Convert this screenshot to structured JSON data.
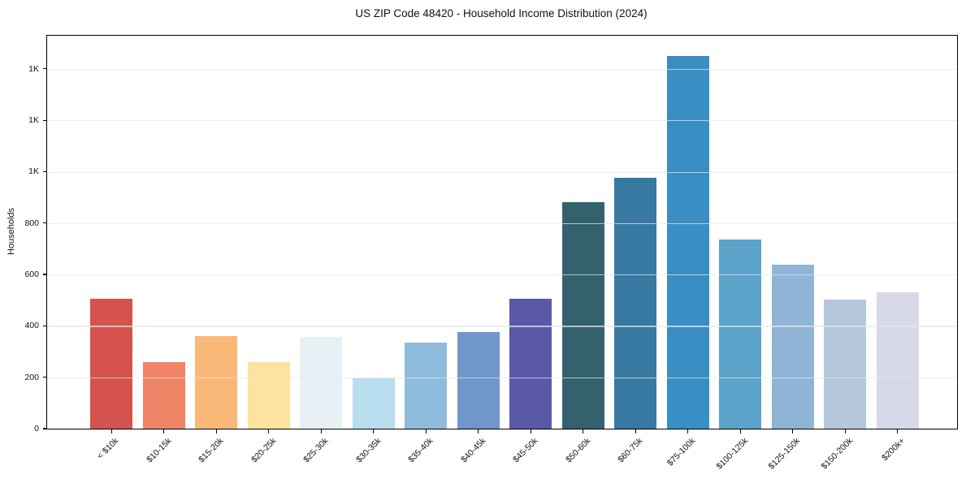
{
  "figure": {
    "background": "#ffffff"
  },
  "chart_data": {
    "type": "bar",
    "title": "US ZIP Code 48420 - Household Income Distribution (2024)",
    "xlabel": "",
    "ylabel": "Households",
    "categories": [
      "< $10k",
      "$10-15k",
      "$15-20k",
      "$20-25k",
      "$25-30k",
      "$30-35k",
      "$35-40k",
      "$40-45k",
      "$45-50k",
      "$50-60k",
      "$60-75k",
      "$75-100k",
      "$100-125k",
      "$125-150k",
      "$150-200k",
      "$200k+"
    ],
    "values": [
      506,
      259,
      360,
      258,
      356,
      197,
      336,
      376,
      506,
      882,
      976,
      1450,
      737,
      637,
      504,
      531
    ],
    "bar_colors": [
      "#d4534e",
      "#f08466",
      "#f9b877",
      "#fde3a0",
      "#e7f1f5",
      "#b8ddee",
      "#8fbcdc",
      "#7096ca",
      "#5a58a8",
      "#35616f",
      "#3779a0",
      "#398fc4",
      "#5ba3c9",
      "#8fb4d6",
      "#b5c7dd",
      "#d7d8e8"
    ],
    "ylim": [
      0,
      1529
    ],
    "yticks": {
      "values": [
        0,
        200,
        400,
        600,
        800,
        1000,
        1200,
        1400
      ],
      "labels": [
        "0",
        "200",
        "400",
        "600",
        "800",
        "1K",
        "1K",
        "1K"
      ]
    },
    "grid": "horizontal",
    "legend": "none",
    "x_tick_rotation_deg": 45,
    "axis_color": "#000000",
    "gridline_color": "#ededed",
    "tick_label_color": "#111111"
  }
}
